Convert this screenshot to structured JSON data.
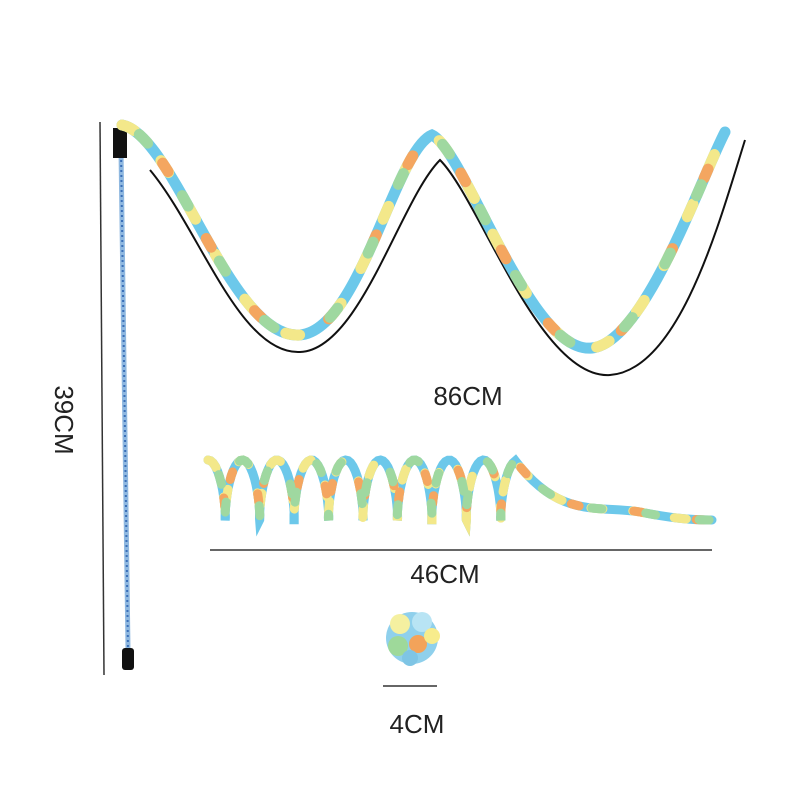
{
  "measurements": [
    "39CM",
    "86CM",
    "46CM",
    "4CM"
  ]
}
